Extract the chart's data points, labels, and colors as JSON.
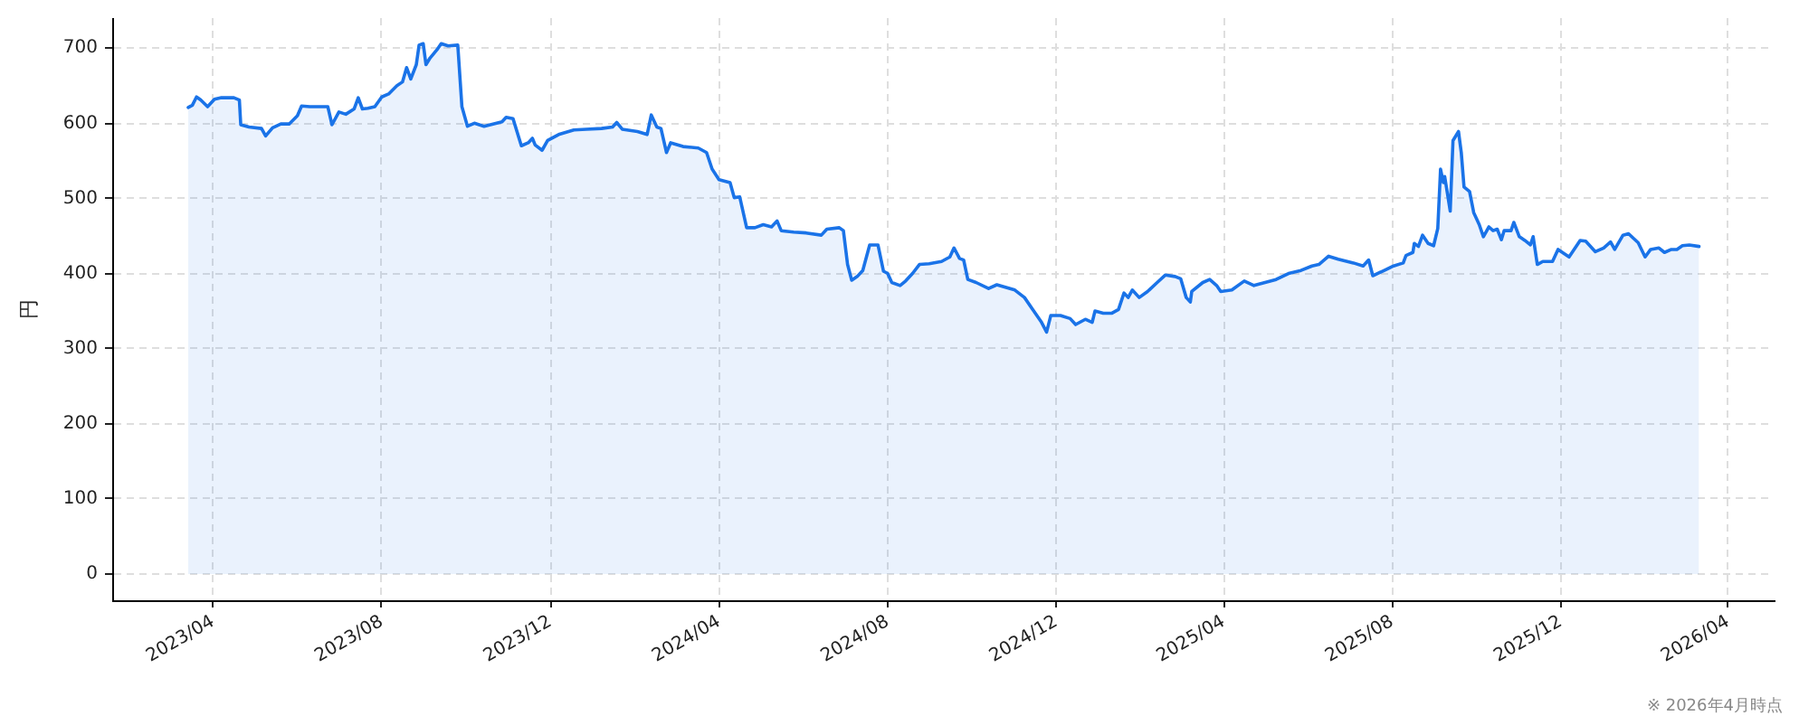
{
  "chart_data": {
    "type": "area",
    "ylabel": "円",
    "annotations": [
      "※ 2026年4月時点"
    ],
    "color": "#1a73e8",
    "x": [
      "2023-03-14",
      "2023-03-17",
      "2023-03-20",
      "2023-03-23",
      "2023-03-28",
      "2023-04-02",
      "2023-04-07",
      "2023-04-16",
      "2023-04-20",
      "2023-04-21",
      "2023-04-27",
      "2023-05-06",
      "2023-05-09",
      "2023-05-14",
      "2023-05-20",
      "2023-05-26",
      "2023-06-01",
      "2023-06-04",
      "2023-06-10",
      "2023-06-23",
      "2023-06-26",
      "2023-07-01",
      "2023-07-06",
      "2023-07-12",
      "2023-07-15",
      "2023-07-18",
      "2023-07-22",
      "2023-07-27",
      "2023-08-01",
      "2023-08-06",
      "2023-08-12",
      "2023-08-16",
      "2023-08-19",
      "2023-08-22",
      "2023-08-26",
      "2023-08-28",
      "2023-08-31",
      "2023-09-02",
      "2023-09-05",
      "2023-09-10",
      "2023-09-13",
      "2023-09-18",
      "2023-09-25",
      "2023-09-28",
      "2023-10-02",
      "2023-10-07",
      "2023-10-14",
      "2023-10-27",
      "2023-10-30",
      "2023-11-04",
      "2023-11-10",
      "2023-11-15",
      "2023-11-18",
      "2023-11-20",
      "2023-11-25",
      "2023-11-29",
      "2023-12-07",
      "2023-12-18",
      "2023-12-27",
      "2024-01-07",
      "2024-01-15",
      "2024-01-18",
      "2024-01-22",
      "2024-02-02",
      "2024-02-09",
      "2024-02-12",
      "2024-02-16",
      "2024-02-19",
      "2024-02-23",
      "2024-02-26",
      "2024-03-06",
      "2024-03-17",
      "2024-03-23",
      "2024-03-27",
      "2024-04-01",
      "2024-04-09",
      "2024-04-12",
      "2024-04-16",
      "2024-04-21",
      "2024-04-27",
      "2024-05-03",
      "2024-05-09",
      "2024-05-13",
      "2024-05-16",
      "2024-05-25",
      "2024-06-03",
      "2024-06-14",
      "2024-06-18",
      "2024-06-27",
      "2024-06-30",
      "2024-07-03",
      "2024-07-06",
      "2024-07-10",
      "2024-07-14",
      "2024-07-19",
      "2024-07-25",
      "2024-07-29",
      "2024-08-01",
      "2024-08-04",
      "2024-08-10",
      "2024-08-14",
      "2024-08-19",
      "2024-08-24",
      "2024-08-31",
      "2024-09-09",
      "2024-09-15",
      "2024-09-18",
      "2024-09-22",
      "2024-09-25",
      "2024-09-28",
      "2024-10-04",
      "2024-10-13",
      "2024-10-19",
      "2024-11-01",
      "2024-11-08",
      "2024-11-14",
      "2024-11-20",
      "2024-11-24",
      "2024-11-27",
      "2024-12-04",
      "2024-12-11",
      "2024-12-15",
      "2024-12-22",
      "2024-12-27",
      "2024-12-29",
      "2025-01-04",
      "2025-01-10",
      "2025-01-15",
      "2025-01-19",
      "2025-01-22",
      "2025-01-25",
      "2025-01-30",
      "2025-02-05",
      "2025-02-12",
      "2025-02-18",
      "2025-02-25",
      "2025-03-01",
      "2025-03-05",
      "2025-03-08",
      "2025-03-09",
      "2025-03-17",
      "2025-03-22",
      "2025-03-27",
      "2025-03-30",
      "2025-04-07",
      "2025-04-16",
      "2025-04-23",
      "2025-05-01",
      "2025-05-09",
      "2025-05-18",
      "2025-05-27",
      "2025-06-04",
      "2025-06-09",
      "2025-06-16",
      "2025-06-23",
      "2025-07-04",
      "2025-07-11",
      "2025-07-15",
      "2025-07-18",
      "2025-07-25",
      "2025-08-02",
      "2025-08-09",
      "2025-08-11",
      "2025-08-16",
      "2025-08-17",
      "2025-08-20",
      "2025-08-23",
      "2025-08-27",
      "2025-08-31",
      "2025-09-03",
      "2025-09-05",
      "2025-09-07",
      "2025-09-08",
      "2025-09-12",
      "2025-09-14",
      "2025-09-18",
      "2025-09-20",
      "2025-09-22",
      "2025-09-26",
      "2025-09-29",
      "2025-10-03",
      "2025-10-06",
      "2025-10-10",
      "2025-10-13",
      "2025-10-16",
      "2025-10-19",
      "2025-10-21",
      "2025-10-26",
      "2025-10-28",
      "2025-11-01",
      "2025-11-05",
      "2025-11-09",
      "2025-11-11",
      "2025-11-14",
      "2025-11-18",
      "2025-11-25",
      "2025-11-29",
      "2025-12-07",
      "2025-12-15",
      "2025-12-19",
      "2025-12-26",
      "2026-01-01",
      "2026-01-06",
      "2026-01-09",
      "2026-01-15",
      "2026-01-19",
      "2026-01-26",
      "2026-01-31",
      "2026-02-04",
      "2026-02-10",
      "2026-02-14",
      "2026-02-19",
      "2026-02-23",
      "2026-02-27",
      "2026-03-04",
      "2026-03-11"
    ],
    "values": [
      621,
      624,
      635,
      631,
      622,
      632,
      634,
      634,
      631,
      598,
      595,
      593,
      583,
      594,
      599,
      599,
      610,
      623,
      622,
      622,
      598,
      615,
      612,
      619,
      634,
      619,
      620,
      622,
      635,
      639,
      650,
      655,
      674,
      659,
      678,
      704,
      706,
      678,
      687,
      698,
      706,
      703,
      704,
      622,
      596,
      600,
      596,
      602,
      608,
      606,
      570,
      574,
      580,
      571,
      564,
      577,
      585,
      591,
      592,
      593,
      595,
      601,
      592,
      589,
      585,
      611,
      595,
      593,
      561,
      574,
      569,
      567,
      561,
      539,
      525,
      521,
      501,
      502,
      461,
      461,
      465,
      462,
      470,
      457,
      455,
      454,
      451,
      459,
      461,
      457,
      412,
      391,
      396,
      404,
      438,
      438,
      403,
      400,
      388,
      384,
      390,
      400,
      412,
      413,
      416,
      422,
      434,
      420,
      418,
      392,
      388,
      380,
      385,
      378,
      368,
      352,
      336,
      322,
      344,
      344,
      340,
      332,
      339,
      335,
      350,
      347,
      347,
      352,
      374,
      368,
      378,
      368,
      376,
      388,
      398,
      396,
      393,
      368,
      362,
      376,
      388,
      392,
      384,
      376,
      378,
      390,
      384,
      388,
      392,
      400,
      404,
      410,
      412,
      423,
      419,
      414,
      410,
      418,
      397,
      403,
      410,
      414,
      424,
      428,
      440,
      436,
      451,
      440,
      437,
      460,
      539,
      521,
      529,
      483,
      577,
      589,
      561,
      515,
      509,
      481,
      465,
      449,
      462,
      457,
      459,
      445,
      457,
      457,
      468,
      449,
      444,
      438,
      449,
      412,
      416,
      416,
      432,
      422,
      444,
      443,
      429,
      434,
      442,
      432,
      451,
      453,
      441,
      422,
      432,
      434,
      428,
      432,
      432,
      437,
      438,
      436
    ],
    "xlim": [
      "2023-01-18",
      "2026-05-04"
    ],
    "xticks": [
      {
        "value": "2023-04",
        "label": "2023/04"
      },
      {
        "value": "2023-08",
        "label": "2023/08"
      },
      {
        "value": "2023-12",
        "label": "2023/12"
      },
      {
        "value": "2024-04",
        "label": "2024/04"
      },
      {
        "value": "2024-08",
        "label": "2024/08"
      },
      {
        "value": "2024-12",
        "label": "2024/12"
      },
      {
        "value": "2025-04",
        "label": "2025/04"
      },
      {
        "value": "2025-08",
        "label": "2025/08"
      },
      {
        "value": "2025-12",
        "label": "2025/12"
      },
      {
        "value": "2026-04",
        "label": "2026/04"
      }
    ],
    "ylim": [
      -35,
      740
    ],
    "yticks": [
      0,
      100,
      200,
      300,
      400,
      500,
      600,
      700
    ],
    "grid": true
  }
}
